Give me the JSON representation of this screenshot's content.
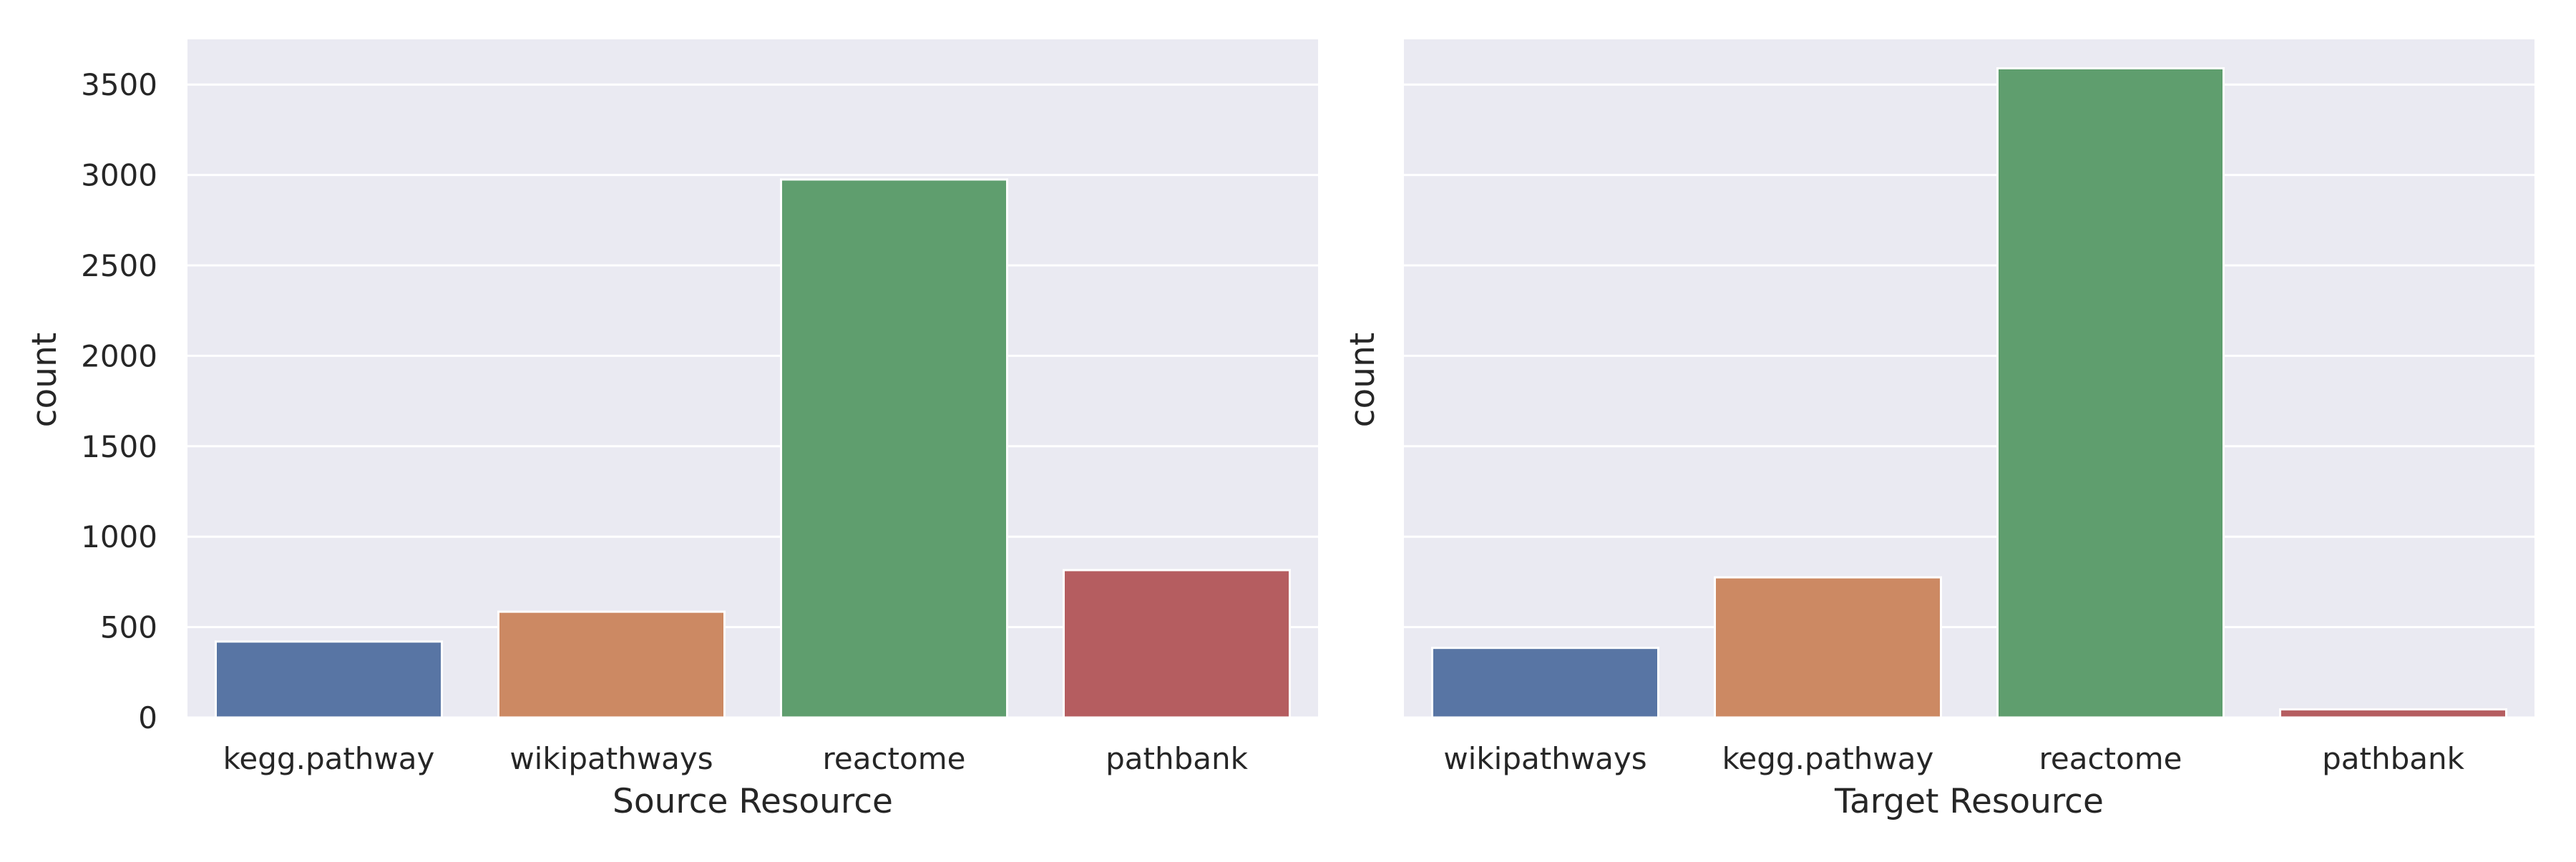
{
  "chart_data": [
    {
      "type": "bar",
      "categories": [
        "kegg.pathway",
        "wikipathways",
        "reactome",
        "pathbank"
      ],
      "values": [
        420,
        585,
        2975,
        815
      ],
      "colors": [
        "#5875a4",
        "#cc8963",
        "#5f9e6e",
        "#b55d60"
      ],
      "xlabel": "Source Resource",
      "ylabel": "count",
      "ylim": [
        0,
        3750
      ],
      "yticks": [
        0,
        500,
        1000,
        1500,
        2000,
        2500,
        3000,
        3500
      ],
      "grid": true,
      "background": "#eaeaf2"
    },
    {
      "type": "bar",
      "categories": [
        "wikipathways",
        "kegg.pathway",
        "reactome",
        "pathbank"
      ],
      "values": [
        385,
        775,
        3590,
        45
      ],
      "colors": [
        "#5875a4",
        "#cc8963",
        "#5f9e6e",
        "#b55d60"
      ],
      "xlabel": "Target Resource",
      "ylabel": "count",
      "ylim": [
        0,
        3750
      ],
      "yticks": [
        0,
        500,
        1000,
        1500,
        2000,
        2500,
        3000,
        3500
      ],
      "grid": true,
      "background": "#eaeaf2"
    }
  ]
}
